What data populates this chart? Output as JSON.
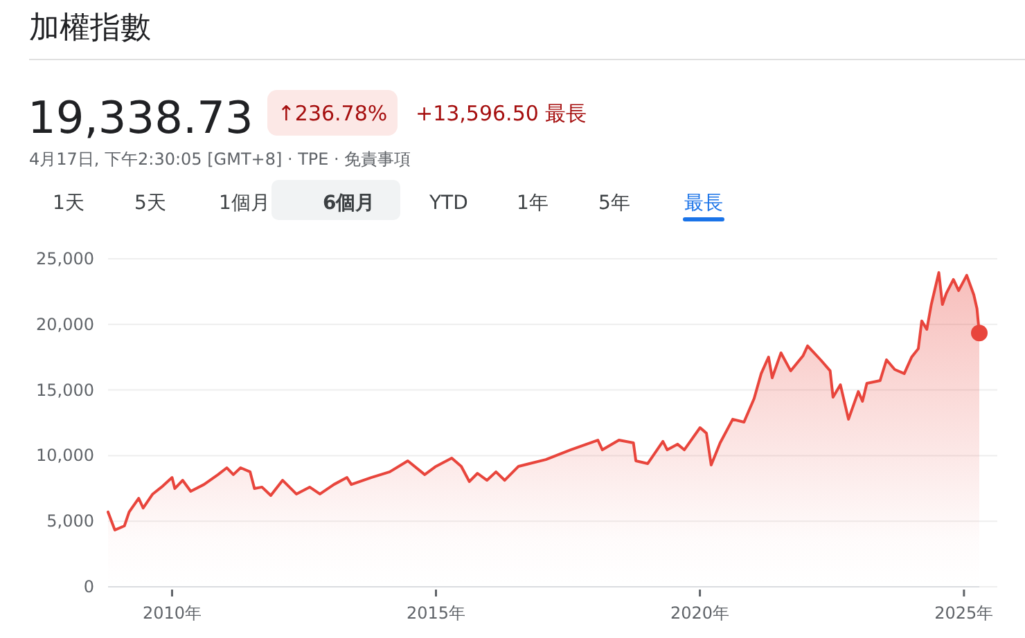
{
  "chart_data": {
    "type": "area",
    "title": "加權指數",
    "annotations": [
      "19,338.73",
      "↑236.78%",
      "+13,596.50 最長",
      "4月17日, 下午2:30:05 [GMT+8] · TPE · 免責事項",
      "1天",
      "5天",
      "1個月",
      "6個月",
      "YTD",
      "1年",
      "5年",
      "最長"
    ],
    "x": [
      "2008-10-15",
      "2008-12-01",
      "2009-02-05",
      "2009-03-10",
      "2009-05-15",
      "2009-06-15",
      "2009-08-20",
      "2009-10-20",
      "2010-01-01",
      "2010-01-20",
      "2010-03-15",
      "2010-05-10",
      "2010-08-10",
      "2010-11-15",
      "2011-01-15",
      "2011-03-01",
      "2011-04-20",
      "2011-06-25",
      "2011-07-25",
      "2011-09-15",
      "2011-11-15",
      "2012-02-05",
      "2012-05-10",
      "2012-08-10",
      "2012-10-20",
      "2013-01-25",
      "2013-04-25",
      "2013-05-25",
      "2013-10-10",
      "2014-02-15",
      "2014-06-20",
      "2014-10-15",
      "2015-01-01",
      "2015-04-20",
      "2015-06-25",
      "2015-08-20",
      "2015-10-15",
      "2015-12-20",
      "2016-02-20",
      "2016-04-20",
      "2016-07-25",
      "2017-01-30",
      "2017-07-20",
      "2018-01-25",
      "2018-02-25",
      "2018-06-20",
      "2018-09-28",
      "2018-10-15",
      "2019-01-05",
      "2019-04-20",
      "2019-05-20",
      "2019-07-30",
      "2019-09-15",
      "2020-01-02",
      "2020-02-15",
      "2020-03-19",
      "2020-05-20",
      "2020-08-15",
      "2020-11-01",
      "2021-01-10",
      "2021-02-28",
      "2021-04-20",
      "2021-05-15",
      "2021-07-15",
      "2021-09-20",
      "2021-12-15",
      "2022-01-15",
      "2022-04-15",
      "2022-06-20",
      "2022-07-10",
      "2022-08-30",
      "2022-10-25",
      "2023-01-01",
      "2023-01-30",
      "2023-03-01",
      "2023-06-01",
      "2023-07-15",
      "2023-09-10",
      "2023-11-15",
      "2024-01-05",
      "2024-02-20",
      "2024-03-15",
      "2024-04-19",
      "2024-05-20",
      "2024-07-11",
      "2024-08-05",
      "2024-09-01",
      "2024-10-20",
      "2024-11-25",
      "2025-01-20",
      "2025-03-10",
      "2025-04-01",
      "2025-04-17"
    ],
    "series": [
      {
        "color": "#e8453c",
        "values": [
          5700,
          4330,
          4640,
          5700,
          6750,
          6000,
          7070,
          7600,
          8330,
          7490,
          8120,
          7280,
          7800,
          8550,
          9070,
          8550,
          9070,
          8760,
          7490,
          7600,
          6960,
          8120,
          7070,
          7600,
          7070,
          7800,
          8330,
          7800,
          8330,
          8760,
          9600,
          8550,
          9180,
          9810,
          9180,
          8020,
          8650,
          8120,
          8760,
          8120,
          9180,
          9700,
          10440,
          11180,
          10440,
          11180,
          10970,
          9600,
          9390,
          11080,
          10440,
          10870,
          10440,
          12130,
          11710,
          9280,
          10970,
          12770,
          12550,
          14350,
          16250,
          17510,
          15930,
          17830,
          16460,
          17620,
          18360,
          17300,
          16460,
          14450,
          15400,
          12770,
          14880,
          14140,
          15510,
          15720,
          17300,
          16560,
          16250,
          17510,
          18150,
          20260,
          19620,
          21520,
          23950,
          21520,
          22370,
          23420,
          22580,
          23740,
          22260,
          21200,
          19338.73
        ]
      },
      {
        "type": "scatter",
        "color": "#e8453c",
        "x": [
          "2025-04-17"
        ],
        "values": [
          19338.73
        ]
      }
    ],
    "xlim": [
      "2008-10-15",
      "2025-04-17"
    ],
    "xticks": [
      {
        "value": "2010",
        "label": "2010年"
      },
      {
        "value": "2015",
        "label": "2015年"
      },
      {
        "value": "2020",
        "label": "2020年"
      },
      {
        "value": "2025",
        "label": "2025年"
      }
    ],
    "ylim": [
      0,
      25000
    ],
    "yticks": [
      {
        "value": 0,
        "label": "0"
      },
      {
        "value": 5000,
        "label": "5,000"
      },
      {
        "value": 10000,
        "label": "10,000"
      },
      {
        "value": 15000,
        "label": "15,000"
      },
      {
        "value": 20000,
        "label": "20,000"
      },
      {
        "value": 25000,
        "label": "25,000"
      }
    ],
    "grid": "y"
  }
}
